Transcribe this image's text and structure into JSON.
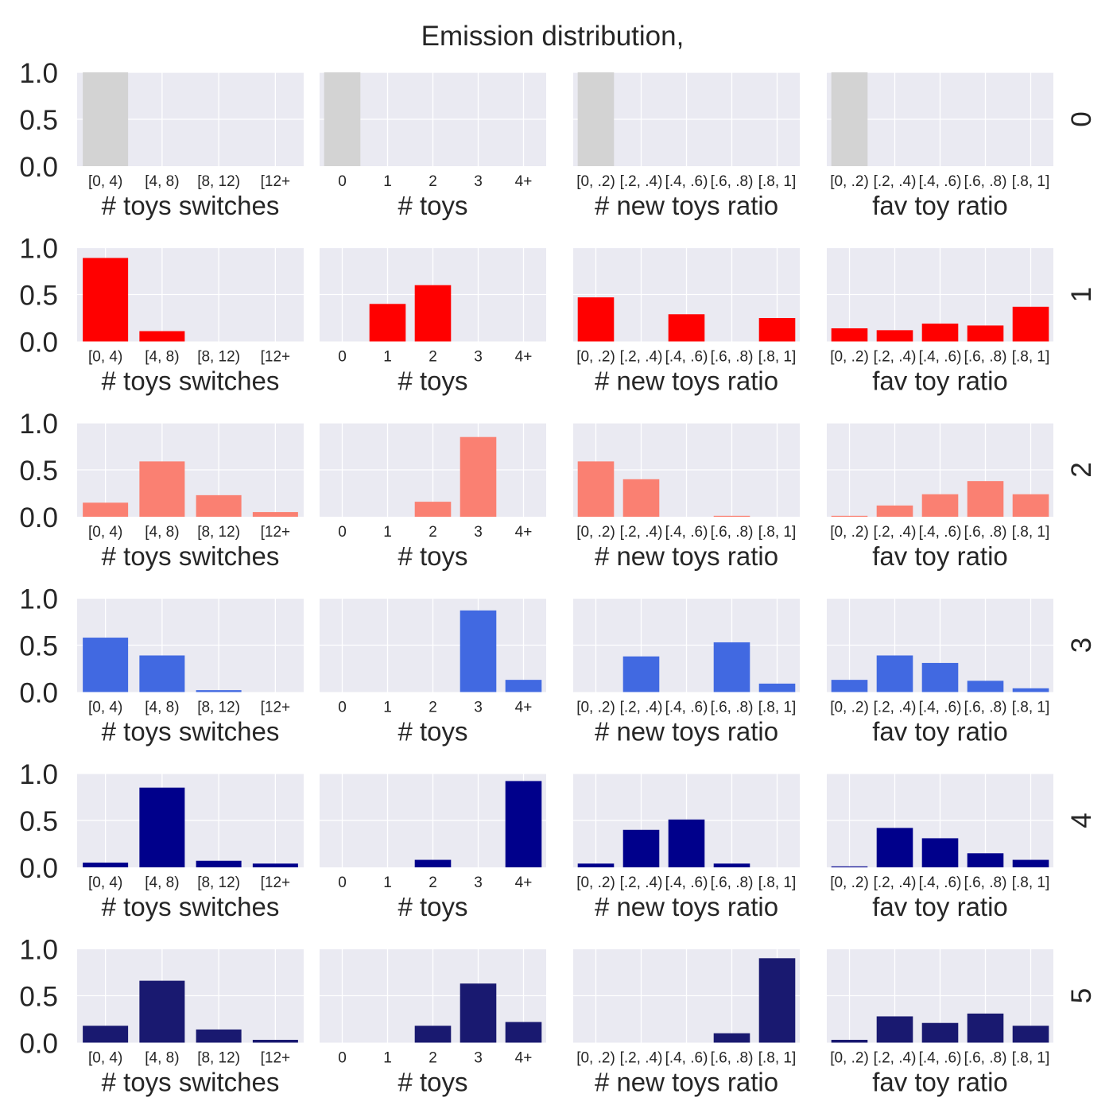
{
  "title": "Emission distribution,",
  "background_color": "#eaeaf2",
  "grid_color": "#ffffff",
  "y_ticks": [
    "0.0",
    "0.5",
    "1.0"
  ],
  "chart_data": {
    "type": "bar",
    "ylim": [
      0,
      1.0
    ],
    "grid": true,
    "columns": [
      {
        "xlabel": "# toys switches",
        "categories": [
          "[0, 4)",
          "[4, 8)",
          "[8, 12)",
          "[12+"
        ]
      },
      {
        "xlabel": "# toys",
        "categories": [
          "0",
          "1",
          "2",
          "3",
          "4+"
        ]
      },
      {
        "xlabel": "# new toys ratio",
        "categories": [
          "[0, .2)",
          "[.2, .4)",
          "[.4, .6)",
          "[.6, .8)",
          "[.8, 1]"
        ]
      },
      {
        "xlabel": "fav toy ratio",
        "categories": [
          "[0, .2)",
          "[.2, .4)",
          "[.4, .6)",
          "[.6, .8)",
          "[.8, 1]"
        ]
      }
    ],
    "rows": [
      {
        "state": "0",
        "color": "#d3d3d3",
        "values": [
          [
            1.0,
            0,
            0,
            0
          ],
          [
            1.0,
            0,
            0,
            0,
            0
          ],
          [
            1.0,
            0,
            0,
            0,
            0
          ],
          [
            1.0,
            0,
            0,
            0,
            0
          ]
        ]
      },
      {
        "state": "1",
        "color": "#ff0000",
        "values": [
          [
            0.89,
            0.11,
            0,
            0
          ],
          [
            0,
            0.4,
            0.6,
            0,
            0
          ],
          [
            0.47,
            0,
            0.29,
            0,
            0.25
          ],
          [
            0.14,
            0.12,
            0.19,
            0.17,
            0.37
          ]
        ]
      },
      {
        "state": "2",
        "color": "#fa8072",
        "values": [
          [
            0.15,
            0.59,
            0.23,
            0.05
          ],
          [
            0,
            0,
            0.16,
            0.85,
            0
          ],
          [
            0.59,
            0.4,
            0,
            0.01,
            0
          ],
          [
            0.01,
            0.12,
            0.24,
            0.38,
            0.24
          ]
        ]
      },
      {
        "state": "3",
        "color": "#4169e1",
        "values": [
          [
            0.58,
            0.39,
            0.02,
            0
          ],
          [
            0,
            0,
            0,
            0.87,
            0.13
          ],
          [
            0,
            0.38,
            0,
            0.53,
            0.09
          ],
          [
            0.13,
            0.39,
            0.31,
            0.12,
            0.04
          ]
        ]
      },
      {
        "state": "4",
        "color": "#00008b",
        "values": [
          [
            0.05,
            0.85,
            0.07,
            0.04
          ],
          [
            0,
            0,
            0.08,
            0,
            0.92
          ],
          [
            0.04,
            0.4,
            0.51,
            0.04,
            0
          ],
          [
            0.01,
            0.42,
            0.31,
            0.15,
            0.08
          ]
        ]
      },
      {
        "state": "5",
        "color": "#191970",
        "values": [
          [
            0.18,
            0.66,
            0.14,
            0.03
          ],
          [
            0,
            0,
            0.18,
            0.63,
            0.22
          ],
          [
            0,
            0,
            0,
            0.1,
            0.9
          ],
          [
            0.03,
            0.28,
            0.21,
            0.31,
            0.18
          ]
        ]
      }
    ]
  }
}
